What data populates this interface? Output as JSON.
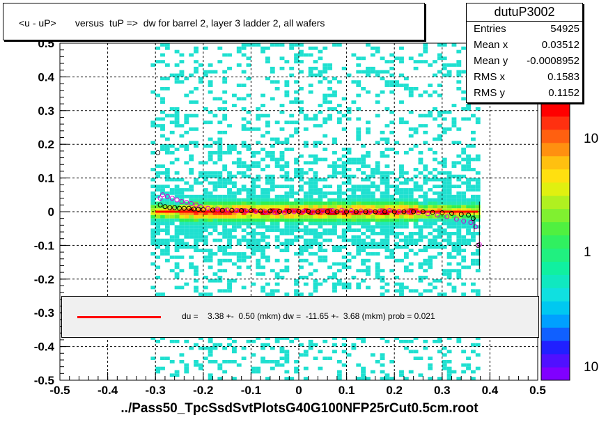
{
  "title": "<u - uP>       versus  tuP =>  dw for barrel 2, layer 3 ladder 2, all wafers",
  "stats": {
    "name": "dutuP3002",
    "rows": [
      {
        "label": "Entries",
        "value": "54925"
      },
      {
        "label": "Mean x",
        "value": "0.03512"
      },
      {
        "label": "Mean y",
        "value": "-0.0008952"
      },
      {
        "label": "RMS x",
        "value": "0.1583"
      },
      {
        "label": "RMS y",
        "value": "0.1152"
      }
    ]
  },
  "fit_text": "du =    3.38 +-  0.50 (mkm) dw =  -11.65 +-  3.68 (mkm) prob = 0.021",
  "chart_data": {
    "type": "heatmap",
    "title": "<u - uP>       versus  tuP =>  dw for barrel 2, layer 3 ladder 2, all wafers",
    "xlabel": "../Pass50_TpcSsdSvtPlotsG40G100NFP25rCut0.5cm.root",
    "ylabel": "",
    "xlim": [
      -0.5,
      0.5
    ],
    "ylim": [
      -0.5,
      0.5
    ],
    "x_ticks": [
      "-0.5",
      "-0.4",
      "-0.3",
      "-0.2",
      "-0.1",
      "0",
      "0.1",
      "0.2",
      "0.3",
      "0.4",
      "0.5"
    ],
    "y_ticks": [
      "-0.5",
      "-0.4",
      "-0.3",
      "-0.2",
      "-0.1",
      "0",
      "0.1",
      "0.2",
      "0.3",
      "0.4",
      "0.5"
    ],
    "grid": true,
    "colorbar": {
      "scale": "log",
      "labels": [
        "10",
        "1",
        "10"
      ]
    },
    "fit_line": {
      "x": [
        -0.3,
        0.375
      ],
      "y": [
        0.0,
        0.0
      ],
      "color": "#ff0000"
    },
    "profile_black": [
      [
        -0.295,
        0.175
      ],
      [
        -0.29,
        0.02
      ],
      [
        -0.28,
        0.015
      ],
      [
        -0.27,
        0.012
      ],
      [
        -0.26,
        0.012
      ],
      [
        -0.25,
        0.01
      ],
      [
        -0.24,
        0.01
      ],
      [
        -0.23,
        0.01
      ],
      [
        -0.22,
        0.008
      ],
      [
        -0.21,
        0.007
      ],
      [
        -0.2,
        0.006
      ],
      [
        -0.18,
        0.005
      ],
      [
        -0.16,
        0.004
      ],
      [
        -0.14,
        0.004
      ],
      [
        -0.12,
        0.003
      ],
      [
        -0.1,
        0.003
      ],
      [
        -0.08,
        0.002
      ],
      [
        -0.06,
        0.002
      ],
      [
        -0.04,
        0.001
      ],
      [
        -0.02,
        0.001
      ],
      [
        0.0,
        0.001
      ],
      [
        0.02,
        0.001
      ],
      [
        0.04,
        0.0
      ],
      [
        0.06,
        0.0
      ],
      [
        0.08,
        0.0
      ],
      [
        0.1,
        0.0
      ],
      [
        0.12,
        0.0
      ],
      [
        0.14,
        0.0
      ],
      [
        0.16,
        0.0
      ],
      [
        0.18,
        0.0
      ],
      [
        0.2,
        0.0
      ],
      [
        0.22,
        0.0
      ],
      [
        0.24,
        0.0
      ],
      [
        0.26,
        0.0
      ],
      [
        0.28,
        -0.002
      ],
      [
        0.3,
        -0.003
      ],
      [
        0.32,
        -0.005
      ],
      [
        0.34,
        -0.008
      ],
      [
        0.355,
        -0.01
      ],
      [
        0.365,
        -0.02
      ],
      [
        0.375,
        -0.1
      ]
    ],
    "profile_magenta": [
      [
        -0.29,
        0.04
      ],
      [
        -0.285,
        0.05
      ],
      [
        -0.275,
        0.045
      ],
      [
        -0.265,
        0.04
      ],
      [
        -0.255,
        0.035
      ],
      [
        -0.245,
        0.03
      ],
      [
        -0.235,
        0.028
      ],
      [
        -0.225,
        0.024
      ],
      [
        -0.215,
        0.02
      ],
      [
        -0.205,
        0.015
      ],
      [
        -0.19,
        0.01
      ],
      [
        -0.17,
        0.008
      ],
      [
        -0.15,
        0.005
      ],
      [
        -0.13,
        0.003
      ],
      [
        -0.11,
        0.002
      ],
      [
        -0.09,
        0.001
      ],
      [
        -0.07,
        0.0
      ],
      [
        -0.05,
        -0.002
      ],
      [
        -0.03,
        -0.002
      ],
      [
        -0.01,
        0.0
      ],
      [
        0.01,
        0.001
      ],
      [
        0.03,
        -0.001
      ],
      [
        0.05,
        0.002
      ],
      [
        0.07,
        0.003
      ],
      [
        0.09,
        0.004
      ],
      [
        0.11,
        0.003
      ],
      [
        0.13,
        0.002
      ],
      [
        0.15,
        0.001
      ],
      [
        0.17,
        0.002
      ],
      [
        0.19,
        0.003
      ],
      [
        0.21,
        0.001
      ],
      [
        0.23,
        0.0
      ],
      [
        0.25,
        -0.003
      ],
      [
        0.27,
        -0.006
      ],
      [
        0.29,
        -0.01
      ],
      [
        0.31,
        -0.015
      ],
      [
        0.33,
        -0.022
      ],
      [
        0.345,
        -0.028
      ],
      [
        0.36,
        -0.032
      ],
      [
        0.37,
        -0.045
      ],
      [
        0.378,
        -0.098
      ]
    ]
  }
}
